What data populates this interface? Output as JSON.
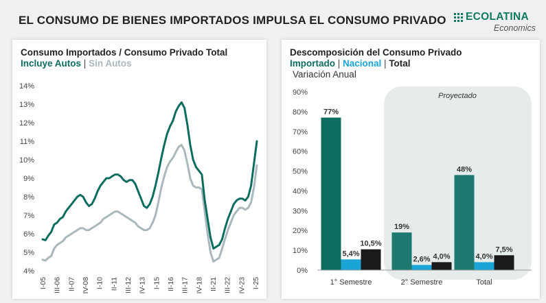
{
  "header": {
    "title": "EL CONSUMO DE BIENES IMPORTADOS IMPULSA EL CONSUMO PRIVADO",
    "logo_brand": "ECOLATINA",
    "logo_sub": "Economics"
  },
  "colors": {
    "green": "#0c6d5f",
    "gray": "#a9b8bc",
    "blue": "#1ba5d6",
    "dark": "#1a1a1a",
    "projected_green": "#1e7a70",
    "projected_bg": "#e6ecec"
  },
  "chart_data": [
    {
      "type": "line",
      "title": "Consumo Importados / Consumo Privado Total",
      "subtitle_parts": [
        "Incluye Autos",
        "|",
        "Sin Autos"
      ],
      "ylim": [
        0.04,
        0.14
      ],
      "y_ticks": [
        "14%",
        "13%",
        "12%",
        "11%",
        "10%",
        "9%",
        "8%",
        "7%",
        "6%",
        "5%",
        "4%"
      ],
      "x_ticks": [
        "I-05",
        "III-06",
        "II-07",
        "IV-08",
        "I-10",
        "II-11",
        "III-12",
        "IV-13",
        "I-15",
        "II-16",
        "III-17",
        "IV-18",
        "II-21",
        "III-22",
        "IV-23",
        "I-25"
      ],
      "series": [
        {
          "name": "Incluye Autos",
          "values": [
            0.057,
            0.0565,
            0.059,
            0.061,
            0.065,
            0.066,
            0.068,
            0.069,
            0.072,
            0.074,
            0.076,
            0.078,
            0.08,
            0.081,
            0.08,
            0.077,
            0.075,
            0.076,
            0.079,
            0.083,
            0.086,
            0.088,
            0.09,
            0.09,
            0.091,
            0.092,
            0.092,
            0.091,
            0.089,
            0.088,
            0.089,
            0.089,
            0.087,
            0.083,
            0.079,
            0.075,
            0.074,
            0.076,
            0.08,
            0.086,
            0.093,
            0.101,
            0.108,
            0.114,
            0.118,
            0.121,
            0.126,
            0.129,
            0.131,
            0.128,
            0.119,
            0.108,
            0.1,
            0.096,
            0.094,
            0.092,
            0.078,
            0.068,
            0.058,
            0.052,
            0.053,
            0.054,
            0.057,
            0.063,
            0.068,
            0.072,
            0.076,
            0.078,
            0.079,
            0.079,
            0.078,
            0.08,
            0.086,
            0.098,
            0.11
          ]
        },
        {
          "name": "Sin Autos",
          "values": [
            0.046,
            0.0455,
            0.047,
            0.048,
            0.052,
            0.054,
            0.055,
            0.056,
            0.058,
            0.059,
            0.06,
            0.061,
            0.062,
            0.063,
            0.063,
            0.062,
            0.062,
            0.063,
            0.064,
            0.065,
            0.066,
            0.068,
            0.069,
            0.07,
            0.071,
            0.072,
            0.072,
            0.071,
            0.07,
            0.069,
            0.068,
            0.067,
            0.066,
            0.064,
            0.063,
            0.062,
            0.062,
            0.063,
            0.066,
            0.07,
            0.077,
            0.085,
            0.091,
            0.096,
            0.099,
            0.101,
            0.104,
            0.107,
            0.108,
            0.105,
            0.098,
            0.09,
            0.086,
            0.085,
            0.085,
            0.084,
            0.072,
            0.06,
            0.05,
            0.045,
            0.046,
            0.047,
            0.052,
            0.057,
            0.062,
            0.066,
            0.07,
            0.072,
            0.074,
            0.074,
            0.073,
            0.074,
            0.077,
            0.085,
            0.097
          ]
        }
      ],
      "grid": false,
      "legend": "none"
    },
    {
      "type": "bar",
      "title": "Descomposición del Consumo Privado",
      "subtitle_parts": [
        "Importado",
        " | ",
        "Nacional",
        " | ",
        "Total"
      ],
      "ylabel": "Variación Anual",
      "ylim": [
        0,
        0.9
      ],
      "y_ticks": [
        "90%",
        "80%",
        "70%",
        "60%",
        "50%",
        "40%",
        "30%",
        "20%",
        "10%",
        "0%"
      ],
      "categories": [
        "1° Semestre",
        "2° Semestre",
        "Total"
      ],
      "projected_label": "Proyectado",
      "series": [
        {
          "name": "Importado",
          "values": [
            0.77,
            0.19,
            0.48
          ],
          "labels": [
            "77%",
            "19%",
            "48%"
          ]
        },
        {
          "name": "Nacional",
          "values": [
            0.054,
            0.026,
            0.04
          ],
          "labels": [
            "5,4%",
            "2,6%",
            "4,0%"
          ]
        },
        {
          "name": "Total",
          "values": [
            0.105,
            0.04,
            0.075
          ],
          "labels": [
            "10,5%",
            "4,0%",
            "7,5%"
          ]
        }
      ],
      "grid": false,
      "legend": "none"
    }
  ]
}
